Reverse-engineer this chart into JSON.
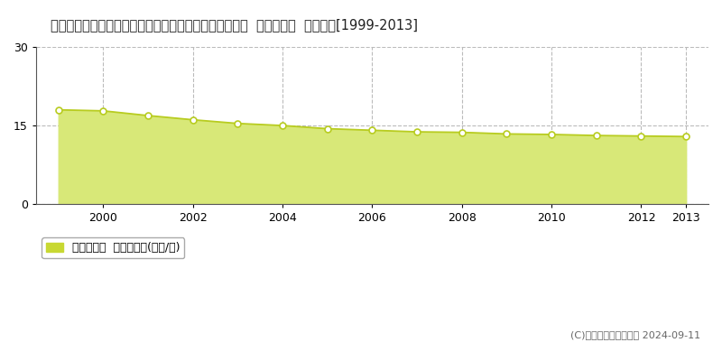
{
  "title": "和歌山県伊都郡かつらぎ町大字笠田中字稲子１３９番１  基準地価格  地価推移[1999-2013]",
  "years": [
    1999,
    2000,
    2001,
    2002,
    2003,
    2004,
    2005,
    2006,
    2007,
    2008,
    2009,
    2010,
    2011,
    2012,
    2013
  ],
  "values": [
    18.0,
    17.8,
    16.9,
    16.1,
    15.4,
    15.0,
    14.4,
    14.1,
    13.8,
    13.7,
    13.4,
    13.3,
    13.1,
    13.0,
    12.9
  ],
  "line_color": "#b8cc20",
  "fill_color": "#d8e878",
  "fill_alpha": 1.0,
  "marker_facecolor": "#ffffff",
  "marker_edgecolor": "#b8cc20",
  "marker_size": 5,
  "marker_linewidth": 1.2,
  "ylim": [
    0,
    30
  ],
  "yticks": [
    0,
    15,
    30
  ],
  "xlim_left": 1998.5,
  "xlim_right": 2013.5,
  "xlabel": "",
  "ylabel": "",
  "grid_color": "#bbbbbb",
  "grid_linestyle": "--",
  "bg_color": "#ffffff",
  "plot_bg_color": "#ffffff",
  "legend_label": "基準地価格  平均坪単価(万円/坪)",
  "legend_color": "#c8d832",
  "copyright_text": "(C)土地価格ドットコム 2024-09-11",
  "title_fontsize": 10.5,
  "tick_fontsize": 9,
  "legend_fontsize": 9,
  "x_tick_years": [
    2000,
    2002,
    2004,
    2006,
    2008,
    2010,
    2012,
    2013
  ]
}
